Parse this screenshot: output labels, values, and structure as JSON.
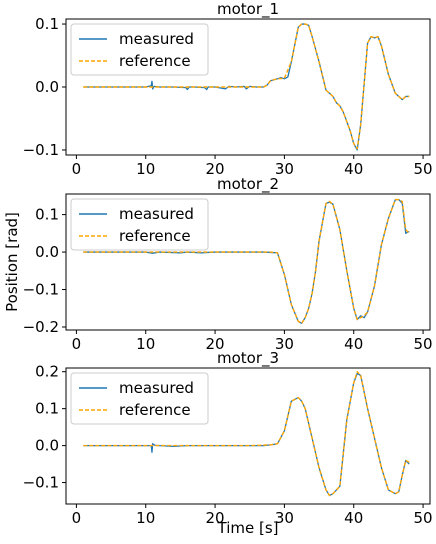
{
  "figure": {
    "xlabel": "Time [s]",
    "ylabel": "Position [rad]"
  },
  "legend_labels": {
    "measured": "measured",
    "reference": "reference"
  },
  "colors": {
    "measured": "#1f77b4",
    "reference": "#ffa500"
  },
  "chart_data": [
    {
      "type": "line",
      "title": "motor_1",
      "xlabel": "",
      "ylabel": "",
      "xlim": [
        -1.5,
        51
      ],
      "ylim": [
        -0.108,
        0.108
      ],
      "xticks": [
        0,
        10,
        20,
        30,
        40,
        50
      ],
      "yticks": [
        -0.1,
        0.0,
        0.1
      ],
      "ytick_labels": [
        "−0.1",
        "0.0",
        "0.1"
      ],
      "legend": "top-left",
      "grid": false,
      "series": [
        {
          "name": "measured",
          "x": [
            1,
            5,
            10,
            10.8,
            10.9,
            11,
            11.2,
            12,
            14,
            15.8,
            16,
            16.3,
            17,
            18.5,
            18.8,
            19,
            20,
            21.5,
            22,
            23,
            24.2,
            24.5,
            25,
            26,
            27,
            27.5,
            28,
            29,
            29.5,
            30,
            30.5,
            31,
            32,
            32.5,
            33,
            33.5,
            34,
            35,
            36,
            37,
            37.5,
            38,
            38.5,
            39,
            39.5,
            40,
            40.5,
            41,
            42,
            42.5,
            43,
            43.5,
            44,
            45,
            46,
            47,
            47.5,
            48
          ],
          "y": [
            0,
            0,
            0,
            0.002,
            0.009,
            -0.003,
            0.001,
            0,
            0,
            -0.001,
            -0.004,
            0,
            0,
            -0.001,
            -0.004,
            0,
            0,
            -0.003,
            0.001,
            0,
            0.001,
            -0.003,
            0.001,
            0,
            0,
            0.003,
            0.01,
            0.013,
            0.015,
            0.013,
            0.016,
            0.04,
            0.095,
            0.1,
            0.1,
            0.098,
            0.08,
            0.04,
            -0.005,
            -0.015,
            -0.025,
            -0.03,
            -0.04,
            -0.055,
            -0.07,
            -0.09,
            -0.1,
            -0.06,
            0.07,
            0.08,
            0.078,
            0.08,
            0.065,
            0.02,
            -0.01,
            -0.02,
            -0.015,
            -0.015
          ]
        },
        {
          "name": "reference",
          "x": [
            1,
            5,
            10,
            12,
            14,
            16,
            18,
            20,
            22,
            24,
            25,
            26,
            27,
            27.5,
            28,
            29,
            30,
            31,
            32,
            32.5,
            33,
            33.5,
            34,
            35,
            36,
            37,
            37.5,
            38,
            38.5,
            39,
            39.5,
            40,
            40.5,
            41,
            42,
            42.5,
            43,
            43.5,
            44,
            45,
            46,
            47,
            47.5,
            48
          ],
          "y": [
            0,
            0,
            0,
            0,
            0,
            0,
            0,
            0,
            0,
            0,
            0,
            0,
            0,
            0.003,
            0.01,
            0.013,
            0.014,
            0.04,
            0.095,
            0.1,
            0.1,
            0.098,
            0.08,
            0.04,
            -0.005,
            -0.015,
            -0.025,
            -0.03,
            -0.04,
            -0.055,
            -0.07,
            -0.09,
            -0.098,
            -0.06,
            0.07,
            0.08,
            0.078,
            0.08,
            0.065,
            0.02,
            -0.01,
            -0.02,
            -0.015,
            -0.015
          ]
        }
      ]
    },
    {
      "type": "line",
      "title": "motor_2",
      "xlabel": "",
      "ylabel": "Position [rad]",
      "xlim": [
        -1.5,
        51
      ],
      "ylim": [
        -0.208,
        0.155
      ],
      "xticks": [
        0,
        10,
        20,
        30,
        40,
        50
      ],
      "yticks": [
        -0.2,
        -0.1,
        0.0,
        0.1
      ],
      "ytick_labels": [
        "−0.2",
        "−0.1",
        "0.0",
        "0.1"
      ],
      "legend": "top-left",
      "grid": false,
      "series": [
        {
          "name": "measured",
          "x": [
            1,
            5,
            10,
            11,
            12,
            15,
            16,
            18,
            20,
            22,
            25,
            27,
            28,
            29,
            30,
            30.5,
            31,
            32,
            32.5,
            33,
            33.5,
            34,
            34.5,
            35,
            36,
            36.5,
            37,
            38,
            39,
            40,
            40.5,
            41,
            41.5,
            42,
            43,
            44,
            45,
            46,
            46.5,
            47,
            47.5,
            48
          ],
          "y": [
            0,
            0,
            0,
            -0.003,
            0,
            -0.002,
            0,
            -0.002,
            0,
            0,
            0,
            0,
            -0.001,
            -0.002,
            -0.06,
            -0.1,
            -0.14,
            -0.185,
            -0.19,
            -0.175,
            -0.15,
            -0.11,
            -0.05,
            0.03,
            0.13,
            0.133,
            0.128,
            0.06,
            -0.05,
            -0.15,
            -0.18,
            -0.17,
            -0.175,
            -0.16,
            -0.09,
            0.02,
            0.09,
            0.14,
            0.14,
            0.13,
            0.05,
            0.055
          ]
        },
        {
          "name": "reference",
          "x": [
            1,
            5,
            10,
            15,
            20,
            25,
            28,
            29,
            30,
            30.5,
            31,
            32,
            32.5,
            33,
            33.5,
            34,
            34.5,
            35,
            36,
            36.5,
            37,
            38,
            39,
            40,
            40.5,
            41,
            41.5,
            42,
            43,
            44,
            45,
            46,
            46.5,
            47,
            47.5,
            48
          ],
          "y": [
            0,
            0,
            0,
            0,
            0,
            0,
            0,
            -0.002,
            -0.06,
            -0.1,
            -0.14,
            -0.185,
            -0.19,
            -0.175,
            -0.15,
            -0.11,
            -0.05,
            0.03,
            0.13,
            0.135,
            0.128,
            0.06,
            -0.05,
            -0.15,
            -0.18,
            -0.175,
            -0.17,
            -0.16,
            -0.09,
            0.02,
            0.09,
            0.14,
            0.14,
            0.135,
            0.06,
            0.05
          ]
        }
      ]
    },
    {
      "type": "line",
      "title": "motor_3",
      "xlabel": "Time [s]",
      "ylabel": "",
      "xlim": [
        -1.5,
        51
      ],
      "ylim": [
        -0.158,
        0.21
      ],
      "xticks": [
        0,
        10,
        20,
        30,
        40,
        50
      ],
      "yticks": [
        -0.1,
        0.0,
        0.1,
        0.2
      ],
      "ytick_labels": [
        "−0.1",
        "0.0",
        "0.1",
        "0.2"
      ],
      "legend": "top-left",
      "grid": false,
      "series": [
        {
          "name": "measured",
          "x": [
            1,
            5,
            10,
            10.8,
            10.9,
            11,
            11.3,
            12,
            14,
            16,
            18,
            20,
            22,
            25,
            27,
            28,
            29,
            30,
            31,
            32,
            32.5,
            33,
            34,
            35,
            36,
            36.5,
            37,
            38,
            38.5,
            39,
            40,
            40.5,
            41,
            42,
            42.5,
            43,
            44,
            45,
            46,
            46.5,
            47,
            47.5,
            48
          ],
          "y": [
            0,
            0,
            0,
            0,
            -0.018,
            0.005,
            0.001,
            0,
            -0.002,
            0,
            0,
            0,
            0,
            0,
            0,
            0.002,
            0.005,
            0.04,
            0.12,
            0.13,
            0.12,
            0.1,
            0.02,
            -0.06,
            -0.12,
            -0.135,
            -0.13,
            -0.11,
            -0.02,
            0.07,
            0.17,
            0.195,
            0.19,
            0.1,
            0.06,
            0.02,
            -0.06,
            -0.12,
            -0.13,
            -0.125,
            -0.08,
            -0.04,
            -0.05
          ]
        },
        {
          "name": "reference",
          "x": [
            1,
            5,
            10,
            15,
            20,
            25,
            28,
            29,
            30,
            31,
            32,
            32.5,
            33,
            34,
            35,
            36,
            36.5,
            37,
            38,
            38.5,
            39,
            40,
            40.5,
            41,
            42,
            42.5,
            43,
            44,
            45,
            46,
            46.5,
            47,
            47.5,
            48
          ],
          "y": [
            0,
            0,
            0,
            0,
            0,
            0,
            0.002,
            0.005,
            0.04,
            0.12,
            0.13,
            0.12,
            0.1,
            0.02,
            -0.06,
            -0.12,
            -0.135,
            -0.13,
            -0.11,
            -0.02,
            0.07,
            0.17,
            0.2,
            0.19,
            0.1,
            0.06,
            0.02,
            -0.06,
            -0.12,
            -0.13,
            -0.125,
            -0.08,
            -0.04,
            -0.045
          ]
        }
      ]
    }
  ]
}
